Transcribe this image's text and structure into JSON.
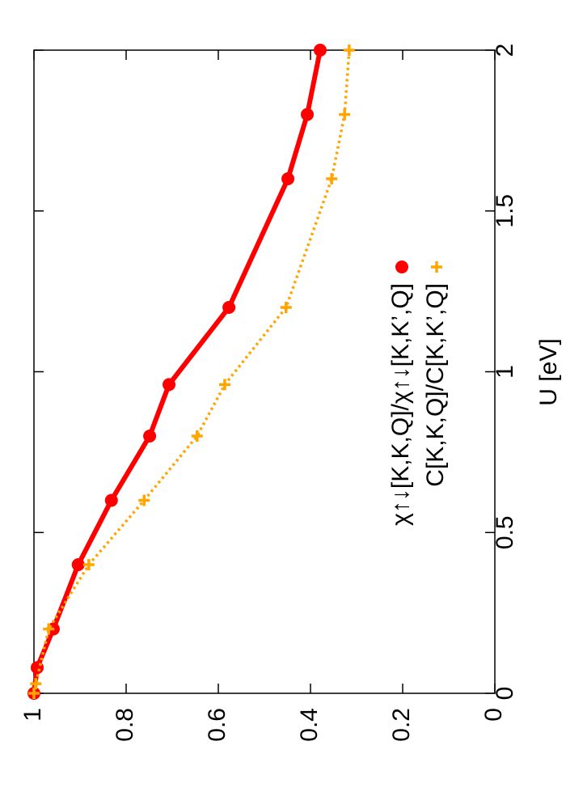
{
  "chart_data": {
    "type": "line",
    "xlabel": "U [eV]",
    "xlim": [
      0,
      2
    ],
    "xticks": [
      0,
      0.5,
      1,
      1.5,
      2
    ],
    "ylim": [
      0,
      1
    ],
    "yticks": [
      0,
      0.2,
      0.4,
      0.6,
      0.8,
      1
    ],
    "legend": "right",
    "series": [
      {
        "name": "χ↑↓[K,K,Q]/χ↑↓[K,K’,Q]",
        "color": "#ff0000",
        "style": "solid",
        "marker": "circle",
        "x": [
          0,
          0.08,
          0.2,
          0.4,
          0.6,
          0.8,
          0.96,
          1.2,
          1.6,
          1.8,
          2.0
        ],
        "values": [
          1.0,
          0.993,
          0.958,
          0.904,
          0.832,
          0.749,
          0.707,
          0.577,
          0.449,
          0.407,
          0.379
        ]
      },
      {
        "name": "C[K,K,Q]/C[K,K’,Q]",
        "color": "#ffa500",
        "style": "dotted",
        "marker": "plus",
        "x": [
          0,
          0.03,
          0.2,
          0.4,
          0.6,
          0.8,
          0.96,
          1.2,
          1.6,
          1.8,
          2.0
        ],
        "values": [
          1.0,
          0.996,
          0.968,
          0.881,
          0.761,
          0.646,
          0.586,
          0.453,
          0.354,
          0.326,
          0.316
        ]
      }
    ]
  }
}
